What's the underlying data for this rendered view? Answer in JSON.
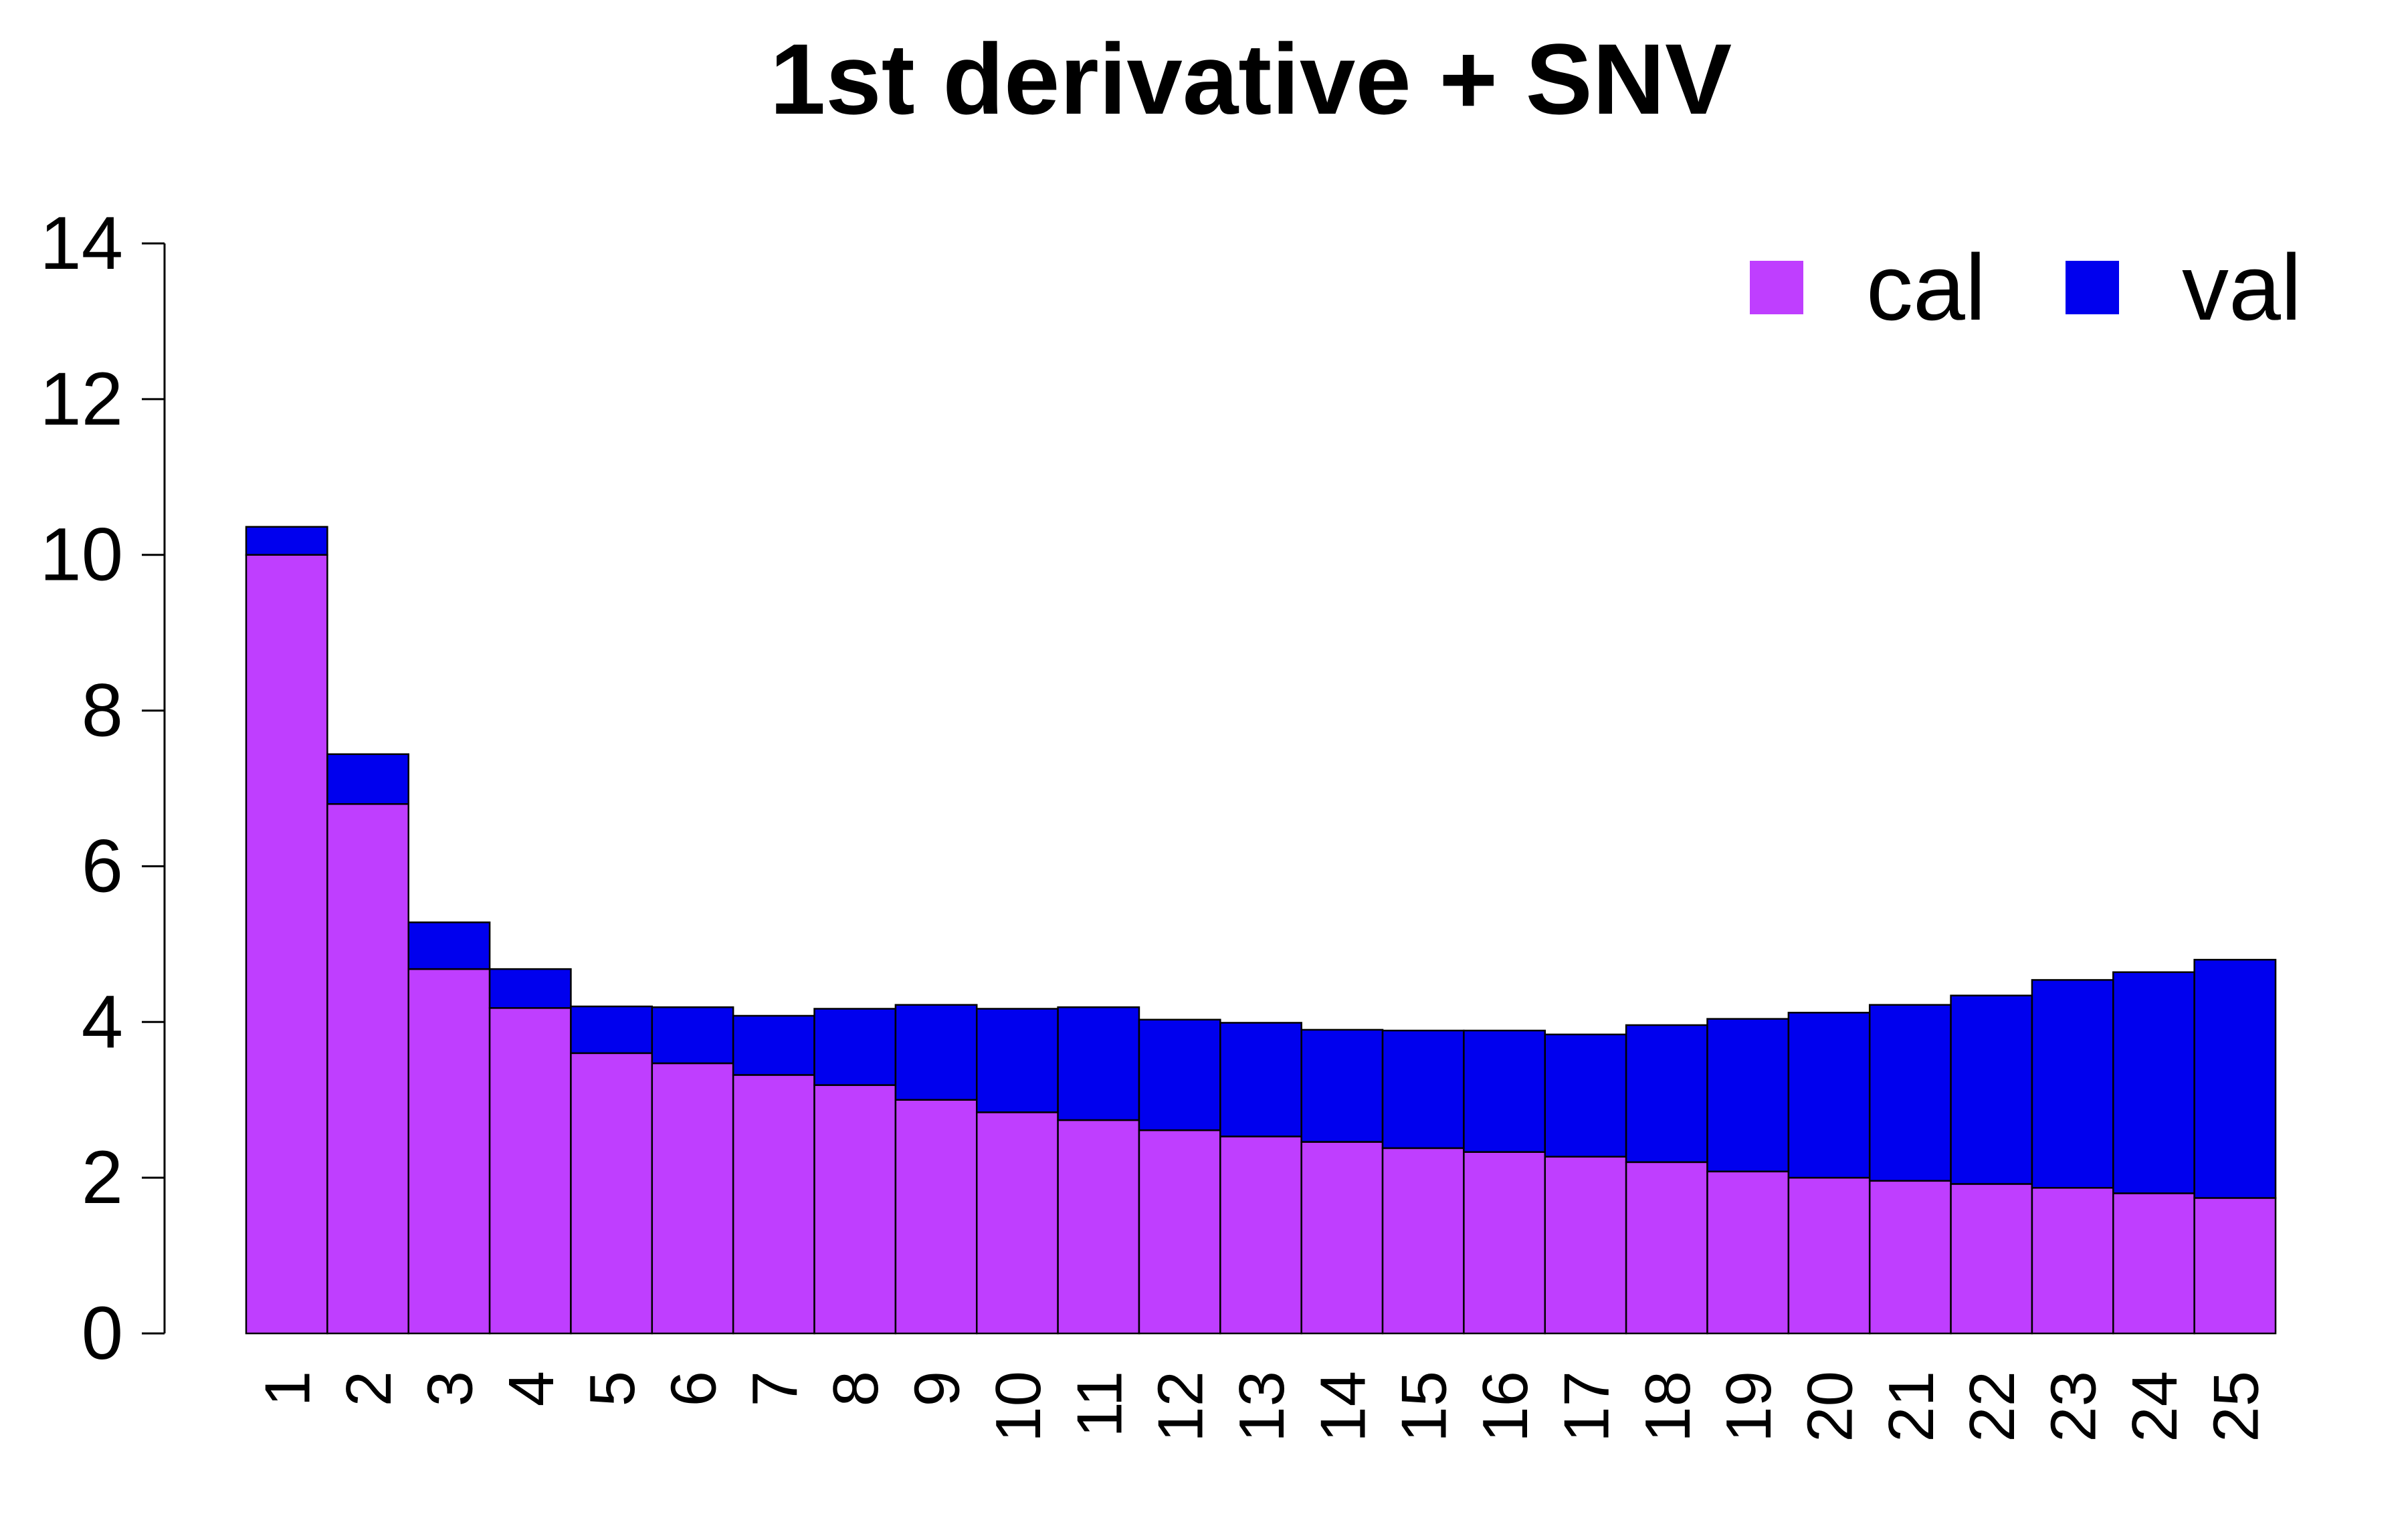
{
  "chart_data": {
    "type": "bar",
    "stacked": true,
    "title": "1st derivative + SNV",
    "xlabel": "",
    "ylabel": "",
    "categories": [
      "1",
      "2",
      "3",
      "4",
      "5",
      "6",
      "7",
      "8",
      "9",
      "10",
      "11",
      "12",
      "13",
      "14",
      "15",
      "16",
      "17",
      "18",
      "19",
      "20",
      "21",
      "22",
      "23",
      "24",
      "25"
    ],
    "series": [
      {
        "name": "cal",
        "color": "#BF3EFF",
        "values": [
          10.0,
          6.8,
          4.68,
          4.18,
          3.6,
          3.47,
          3.32,
          3.19,
          3.0,
          2.84,
          2.74,
          2.61,
          2.53,
          2.46,
          2.38,
          2.33,
          2.27,
          2.2,
          2.08,
          2.0,
          1.96,
          1.92,
          1.87,
          1.8,
          1.74
        ]
      },
      {
        "name": "val",
        "color": "#0000EE",
        "values": [
          0.36,
          0.64,
          0.6,
          0.5,
          0.6,
          0.72,
          0.76,
          0.98,
          1.22,
          1.33,
          1.45,
          1.42,
          1.46,
          1.44,
          1.51,
          1.56,
          1.57,
          1.76,
          1.96,
          2.12,
          2.26,
          2.42,
          2.67,
          2.84,
          3.06
        ]
      }
    ],
    "ylim": [
      0,
      14
    ],
    "yticks": [
      0,
      2,
      4,
      6,
      8,
      10,
      12,
      14
    ],
    "grid": false,
    "legend": "top-right"
  }
}
